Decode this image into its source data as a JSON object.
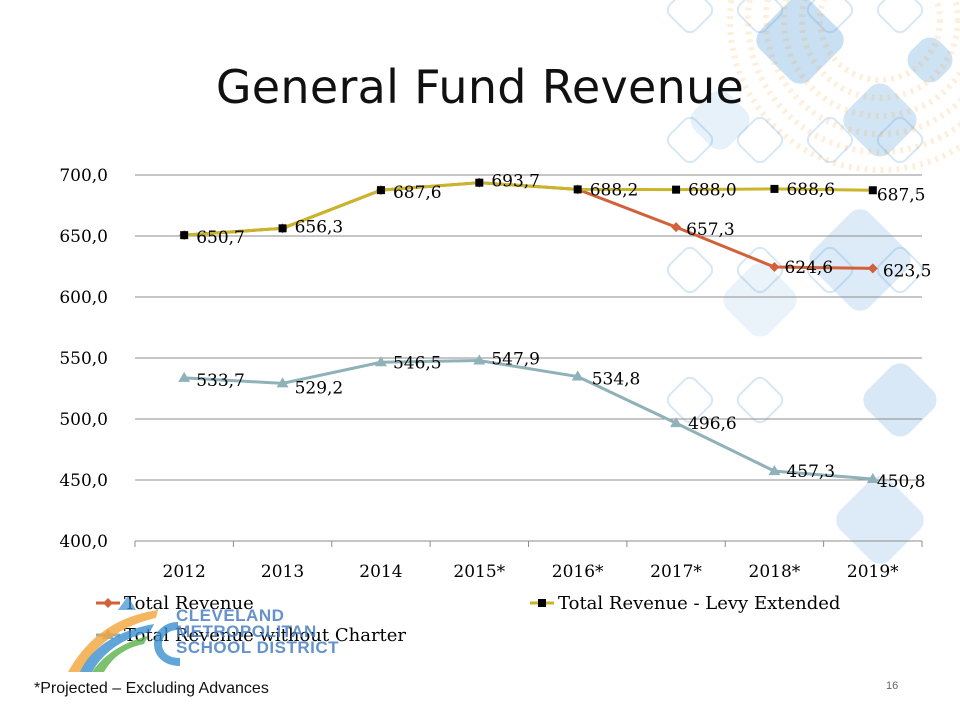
{
  "slide": {
    "title": "General Fund Revenue",
    "footnote": "*Projected – Excluding Advances",
    "page_number": "16",
    "logo": {
      "line1": "CLEVELAND",
      "line2": "METROPOLITAN",
      "line3": "SCHOOL DISTRICT"
    }
  },
  "colors": {
    "total_revenue": "#d2603a",
    "levy_extended": "#c9b52a",
    "without_charter": "#8fb1b8",
    "marker_dark": "#000000",
    "gridline": "#8c8c8c",
    "deco_blue": "#5a9fd8"
  },
  "chart_data": {
    "type": "line",
    "title": "",
    "xlabel": "",
    "ylabel": "",
    "categories": [
      "2012",
      "2013",
      "2014",
      "2015*",
      "2016*",
      "2017*",
      "2018*",
      "2019*"
    ],
    "ylim": [
      400,
      700
    ],
    "yticks": [
      "400,0",
      "450,0",
      "500,0",
      "550,0",
      "600,0",
      "650,0",
      "700,0"
    ],
    "ytick_values": [
      400,
      450,
      500,
      550,
      600,
      650,
      700
    ],
    "grid": "horizontal",
    "legend_position": "bottom",
    "series": [
      {
        "name": "Total Revenue",
        "marker": "diamond",
        "values": [
          650.7,
          656.3,
          687.6,
          693.7,
          688.2,
          657.3,
          624.6,
          623.5
        ],
        "labels": [
          "",
          "",
          "",
          "",
          "",
          "657,3",
          "624,6",
          "623,5"
        ]
      },
      {
        "name": "Total Revenue - Levy Extended",
        "marker": "square",
        "values": [
          650.7,
          656.3,
          687.6,
          693.7,
          688.2,
          688.0,
          688.6,
          687.5
        ],
        "labels": [
          "650,7",
          "656,3",
          "687,6",
          "693,7",
          "688,2",
          "688,0",
          "688,6",
          "687,5"
        ]
      },
      {
        "name": "Total Revenue without Charter",
        "marker": "triangle",
        "values": [
          533.7,
          529.2,
          546.5,
          547.9,
          534.8,
          496.6,
          457.3,
          450.8
        ],
        "labels": [
          "533,7",
          "529,2",
          "546,5",
          "547,9",
          "534,8",
          "496,6",
          "457,3",
          "450,8"
        ]
      }
    ]
  }
}
